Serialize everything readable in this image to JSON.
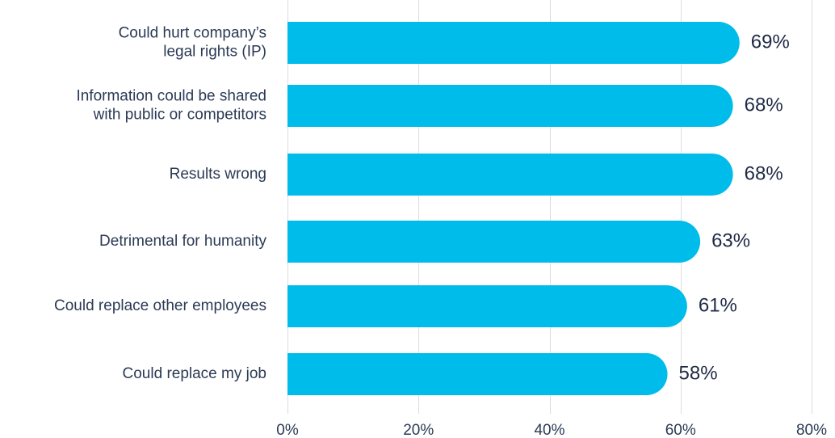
{
  "chart_data": {
    "type": "bar",
    "orientation": "horizontal",
    "categories": [
      [
        "Could hurt company’s",
        "legal rights (IP)"
      ],
      [
        "Information could be shared",
        "with public or competitors"
      ],
      [
        "Results wrong"
      ],
      [
        "Detrimental for humanity"
      ],
      [
        "Could replace other employees"
      ],
      [
        "Could replace my job"
      ]
    ],
    "values": [
      69,
      68,
      68,
      63,
      61,
      58
    ],
    "value_labels": [
      "69%",
      "68%",
      "68%",
      "63%",
      "61%",
      "58%"
    ],
    "xlim": [
      0,
      80
    ],
    "x_ticks": [
      0,
      20,
      40,
      60,
      80
    ],
    "x_tick_labels": [
      "0%",
      "20%",
      "40%",
      "60%",
      "80%"
    ],
    "grid": "vertical",
    "bar_color": "#00bceb",
    "title": "",
    "xlabel": "",
    "ylabel": ""
  }
}
